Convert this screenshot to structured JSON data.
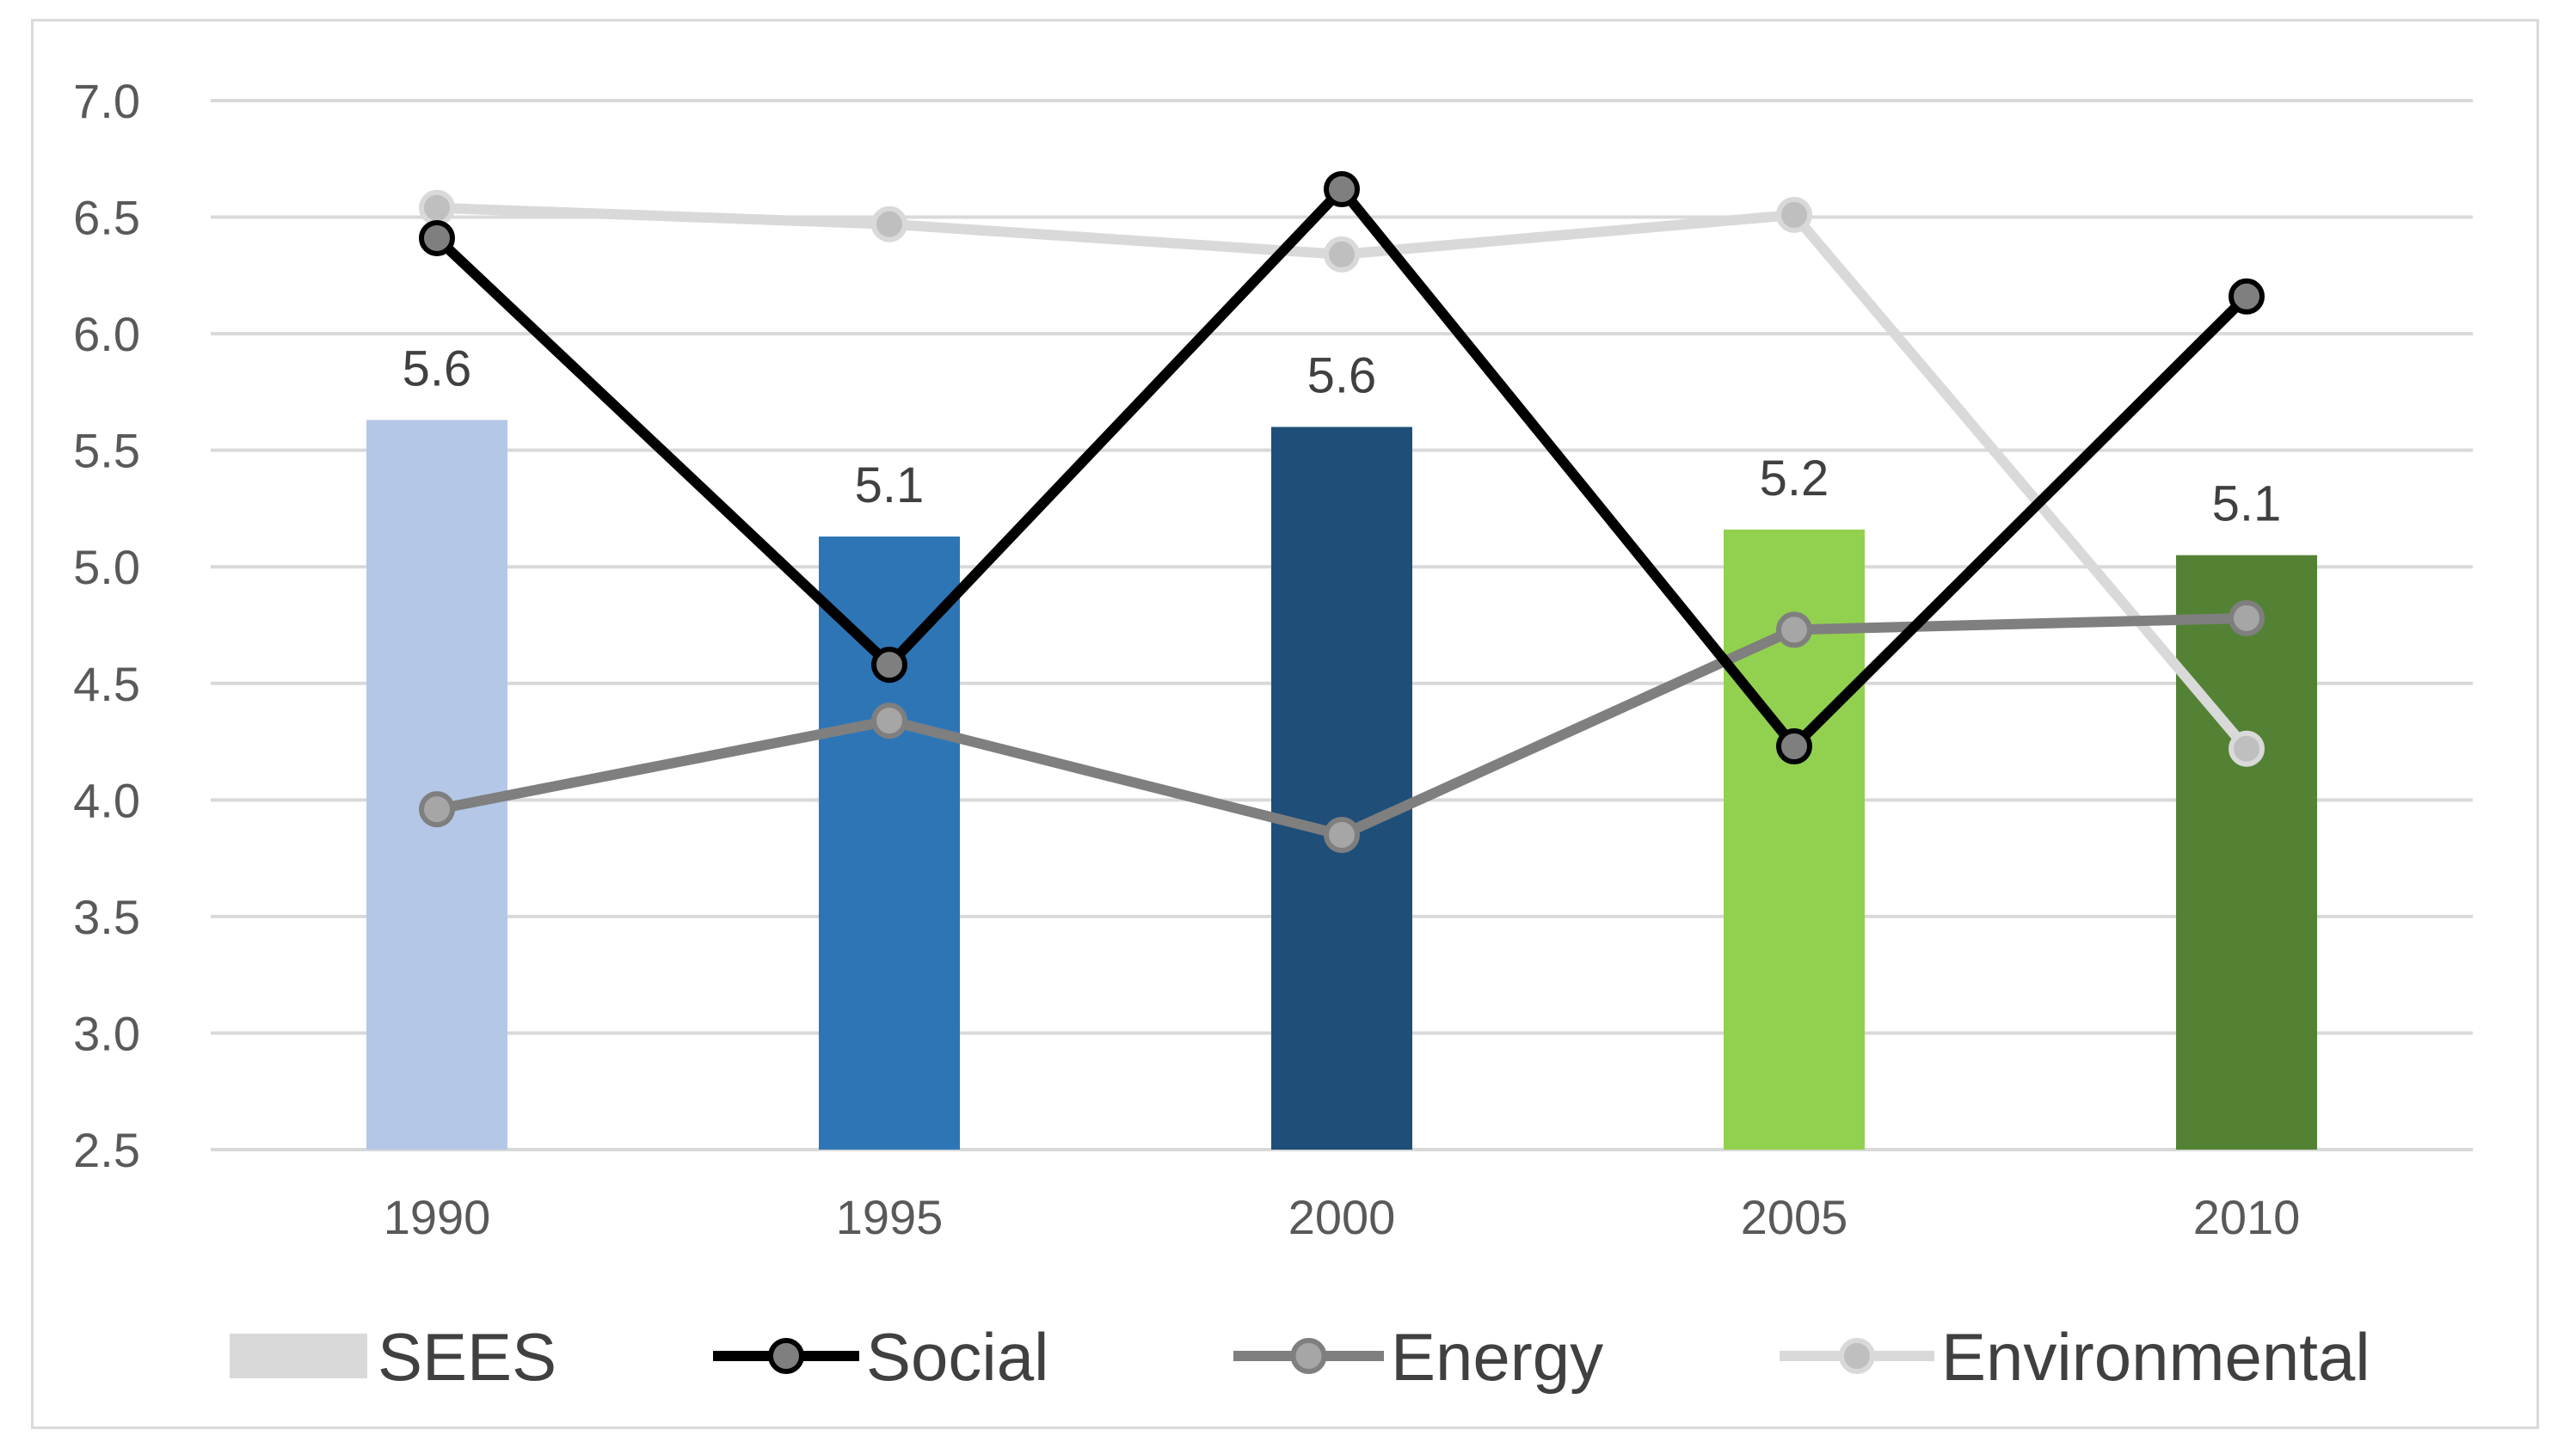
{
  "chart_data": {
    "type": "bar",
    "categories": [
      "1990",
      "1995",
      "2000",
      "2005",
      "2010"
    ],
    "ylim": [
      2.5,
      7.0
    ],
    "yticks": [
      "2.5",
      "3.0",
      "3.5",
      "4.0",
      "4.5",
      "5.0",
      "5.5",
      "6.0",
      "6.5",
      "7.0"
    ],
    "ytick_values": [
      2.5,
      3.0,
      3.5,
      4.0,
      4.5,
      5.0,
      5.5,
      6.0,
      6.5,
      7.0
    ],
    "grid": true,
    "legend_position": "bottom",
    "bars": {
      "name": "SEES",
      "values": [
        5.63,
        5.13,
        5.6,
        5.16,
        5.05
      ],
      "labels": [
        "5.6",
        "5.1",
        "5.6",
        "5.2",
        "5.1"
      ],
      "colors": [
        "#b4c7e7",
        "#2e75b6",
        "#1f4e79",
        "#92d050",
        "#548235"
      ],
      "legend_color": "#d9d9d9"
    },
    "series": [
      {
        "name": "Social",
        "type": "line",
        "color": "#000000",
        "marker_fill": "#7f7f7f",
        "values": [
          6.41,
          4.58,
          6.62,
          4.23,
          6.16
        ]
      },
      {
        "name": "Energy",
        "type": "line",
        "color": "#7f7f7f",
        "marker_fill": "#a6a6a6",
        "values": [
          3.96,
          4.34,
          3.85,
          4.73,
          4.78
        ]
      },
      {
        "name": "Environmental",
        "type": "line",
        "color": "#d9d9d9",
        "marker_fill": "#bfbfbf",
        "values": [
          6.54,
          6.47,
          6.34,
          6.51,
          4.22
        ]
      }
    ],
    "legend": [
      "SEES",
      "Social",
      "Energy",
      "Environmental"
    ]
  }
}
